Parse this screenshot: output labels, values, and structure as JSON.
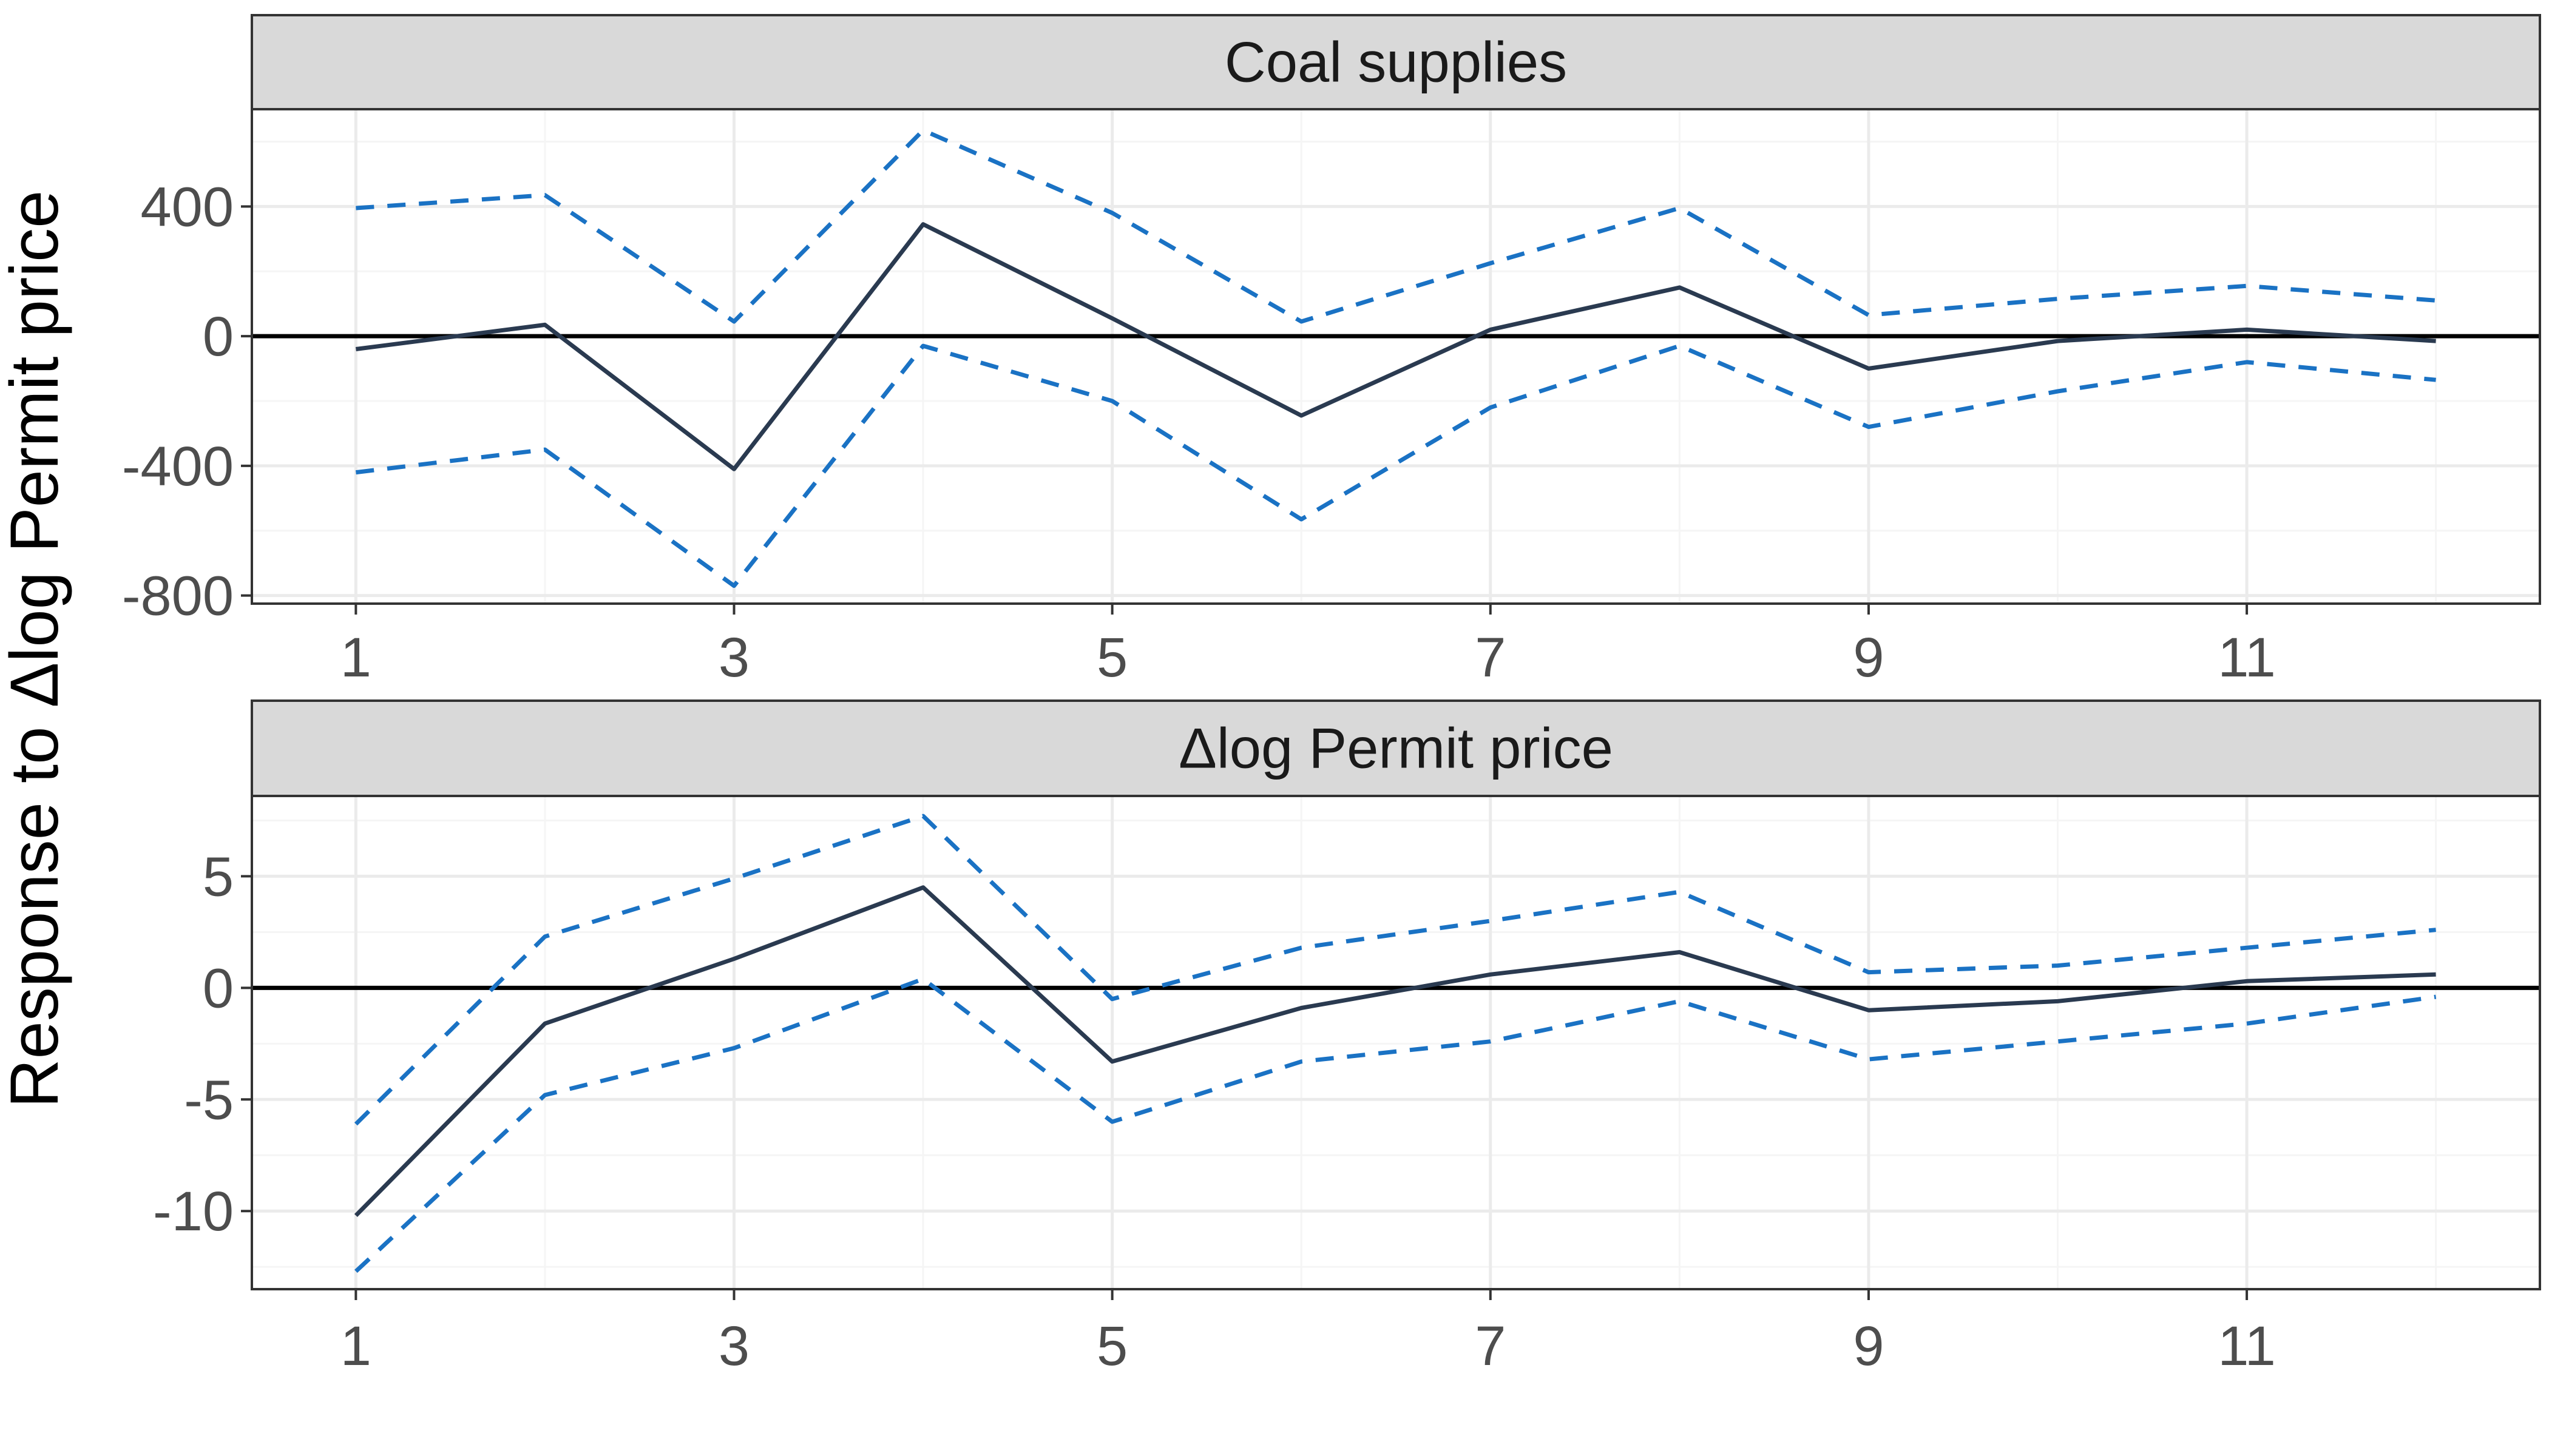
{
  "figure": {
    "ylabel": "Response to Δlog Permit price"
  },
  "colors": {
    "estimate": "#2a3a50",
    "ci": "#1a72c4",
    "zero_line": "#000000",
    "strip_fill": "#d9d9d9",
    "strip_border": "#333333",
    "panel_border": "#333333",
    "grid_major": "#ebebeb",
    "grid_minor": "#f5f5f5"
  },
  "chart_data": [
    {
      "type": "line",
      "title": "Coal supplies",
      "xlabel": "",
      "ylabel": "Response to Δlog Permit price",
      "x": [
        1,
        2,
        3,
        4,
        5,
        6,
        7,
        8,
        9,
        10,
        11,
        12
      ],
      "xlim": [
        0.45,
        12.55
      ],
      "ylim": [
        -825,
        700
      ],
      "x_ticks": [
        1,
        3,
        5,
        7,
        9,
        11
      ],
      "y_ticks": [
        400,
        0,
        -400,
        -800
      ],
      "y_tick_labels": [
        "400",
        "0",
        "-400",
        "-800"
      ],
      "grid": true,
      "legend": "none",
      "zero_line": 0,
      "series": [
        {
          "role": "estimate",
          "style": "solid",
          "values": [
            -40,
            35,
            -410,
            345,
            55,
            -245,
            20,
            150,
            -100,
            -15,
            20,
            -15
          ]
        },
        {
          "role": "upper_bound",
          "style": "dashed",
          "values": [
            395,
            435,
            45,
            635,
            380,
            45,
            225,
            395,
            65,
            115,
            155,
            110
          ]
        },
        {
          "role": "lower_bound",
          "style": "dashed",
          "values": [
            -420,
            -350,
            -770,
            -30,
            -200,
            -565,
            -220,
            -30,
            -280,
            -170,
            -80,
            -135
          ]
        }
      ]
    },
    {
      "type": "line",
      "title": "Δlog Permit price",
      "xlabel": "",
      "ylabel": "Response to Δlog Permit price",
      "x": [
        1,
        2,
        3,
        4,
        5,
        6,
        7,
        8,
        9,
        10,
        11,
        12
      ],
      "xlim": [
        0.45,
        12.55
      ],
      "ylim": [
        -13.5,
        8.6
      ],
      "x_ticks": [
        1,
        3,
        5,
        7,
        9,
        11
      ],
      "y_ticks": [
        5,
        0,
        -5,
        -10
      ],
      "y_tick_labels": [
        "5",
        "0",
        "-5",
        "-10"
      ],
      "grid": true,
      "legend": "none",
      "zero_line": 0,
      "series": [
        {
          "role": "estimate",
          "style": "solid",
          "values": [
            -10.2,
            -1.6,
            1.3,
            4.5,
            -3.3,
            -0.9,
            0.6,
            1.6,
            -1.0,
            -0.6,
            0.3,
            0.6
          ]
        },
        {
          "role": "upper_bound",
          "style": "dashed",
          "values": [
            -6.1,
            2.3,
            4.9,
            7.7,
            -0.5,
            1.8,
            3.0,
            4.3,
            0.7,
            1.0,
            1.8,
            2.6
          ]
        },
        {
          "role": "lower_bound",
          "style": "dashed",
          "values": [
            -12.7,
            -4.8,
            -2.7,
            0.4,
            -6.0,
            -3.3,
            -2.4,
            -0.6,
            -3.2,
            -2.4,
            -1.6,
            -0.4
          ]
        }
      ]
    }
  ]
}
